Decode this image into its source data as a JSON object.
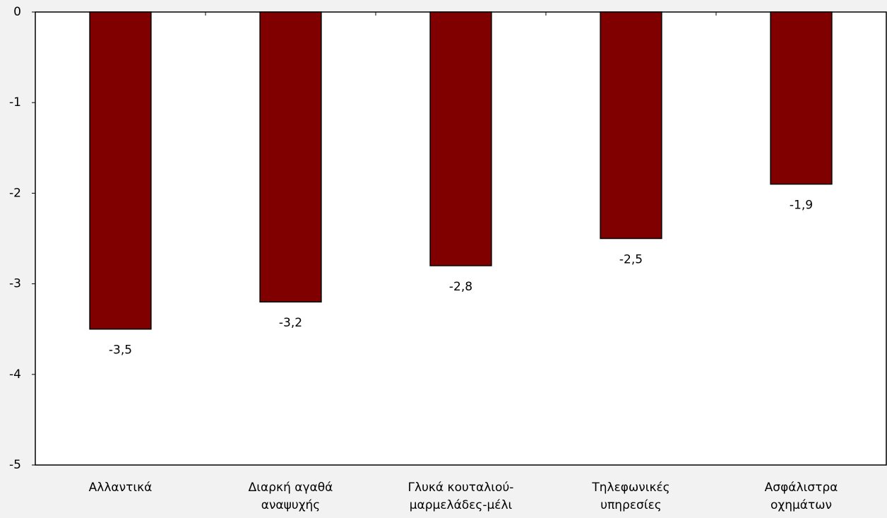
{
  "chart_data": {
    "type": "bar",
    "categories": [
      [
        "Αλλαντικά"
      ],
      [
        "Διαρκή αγαθά",
        "αναψυχής"
      ],
      [
        "Γλυκά κουταλιού-",
        "μαρμελάδες-μέλι"
      ],
      [
        "Τηλεφωνικές",
        "υπηρεσίες"
      ],
      [
        "Ασφάλιστρα",
        "οχημάτων"
      ]
    ],
    "values": [
      -3.5,
      -3.2,
      -2.8,
      -2.5,
      -1.9
    ],
    "value_labels": [
      "-3,5",
      "-3,2",
      "-2,8",
      "-2,5",
      "-1,9"
    ],
    "color": "#800000",
    "ylim": [
      -5,
      0
    ],
    "yticks": [
      0,
      -1,
      -2,
      -3,
      -4,
      -5
    ],
    "grid": false
  }
}
